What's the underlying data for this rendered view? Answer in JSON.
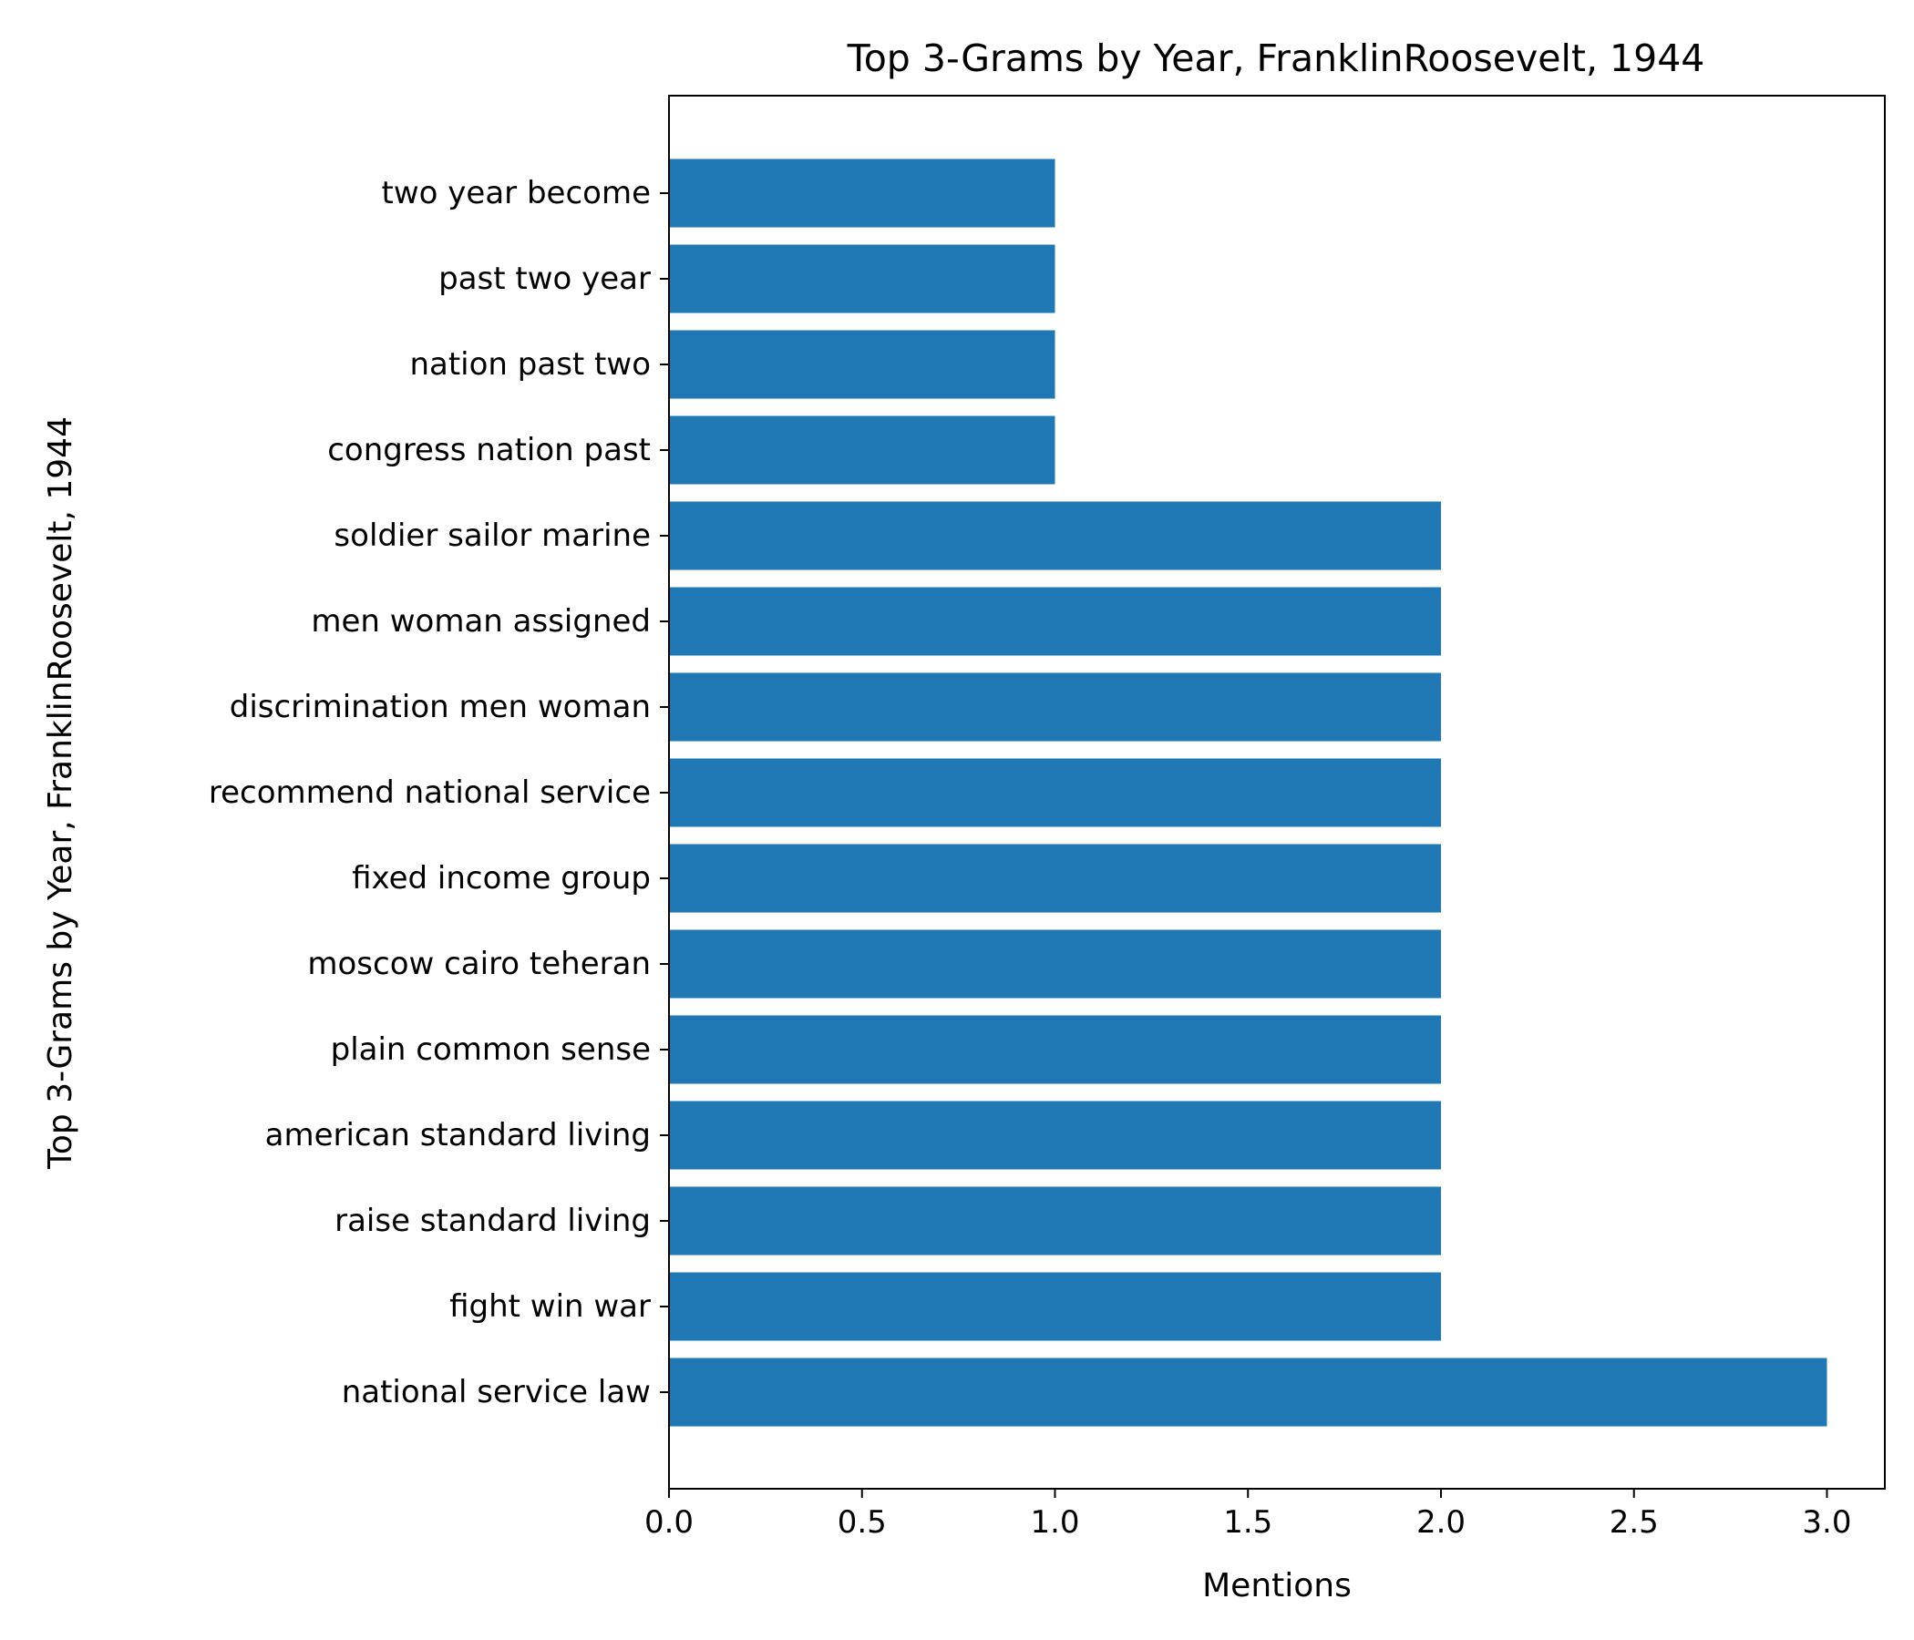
{
  "chart_data": {
    "type": "bar",
    "orientation": "horizontal",
    "title": "Top 3-Grams by Year, FranklinRoosevelt, 1944",
    "xlabel": "Mentions",
    "ylabel": "Top 3-Grams by Year, FranklinRoosevelt, 1944",
    "categories": [
      "national service law",
      "fight win war",
      "raise standard living",
      "american standard living",
      "plain common sense",
      "moscow cairo teheran",
      "fixed income group",
      "recommend national service",
      "discrimination men woman",
      "men woman assigned",
      "soldier sailor marine",
      "congress nation past",
      "nation past two",
      "past two year",
      "two year become"
    ],
    "values": [
      3,
      2,
      2,
      2,
      2,
      2,
      2,
      2,
      2,
      2,
      2,
      1,
      1,
      1,
      1
    ],
    "xlim": [
      0,
      3.15
    ],
    "xticks": [
      0.0,
      0.5,
      1.0,
      1.5,
      2.0,
      2.5,
      3.0
    ],
    "xtick_labels": [
      "0.0",
      "0.5",
      "1.0",
      "1.5",
      "2.0",
      "2.5",
      "3.0"
    ],
    "bar_color": "#1f77b4",
    "grid": false,
    "legend": "none"
  }
}
